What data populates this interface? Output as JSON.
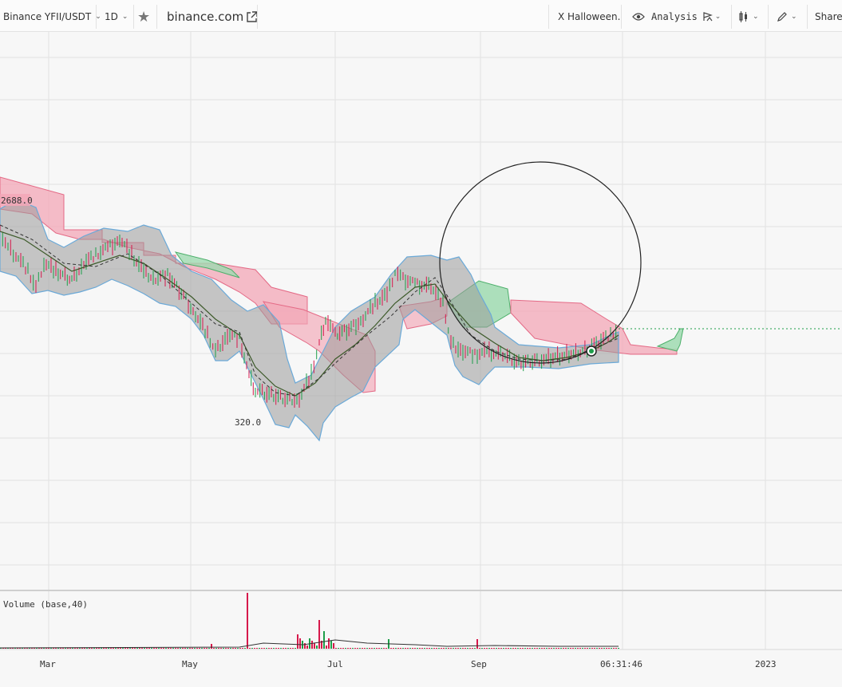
{
  "toolbar": {
    "symbol": "Binance YFII/USDT",
    "interval": "1D",
    "site": "binance.com",
    "indicator_chip": "X Halloween.",
    "analysis": "Analysis",
    "share": "Share"
  },
  "colors": {
    "up": "#1e9e4a",
    "down": "#d6194b",
    "cloud_bear": "#f3a7b7",
    "cloud_bull": "#9fdab0",
    "bollinger_fill": "#9b9b9b",
    "bollinger_edge": "#6aa9d8"
  },
  "chart_data": {
    "type": "line",
    "price_labels": {
      "high": "2688.0",
      "low": "320.0"
    },
    "x_tick_labels": [
      "Mar",
      "May",
      "Jul",
      "Sep",
      "06:31:46",
      "2023"
    ],
    "volume_pane_label": "Volume (base,40)",
    "grid": true
  }
}
